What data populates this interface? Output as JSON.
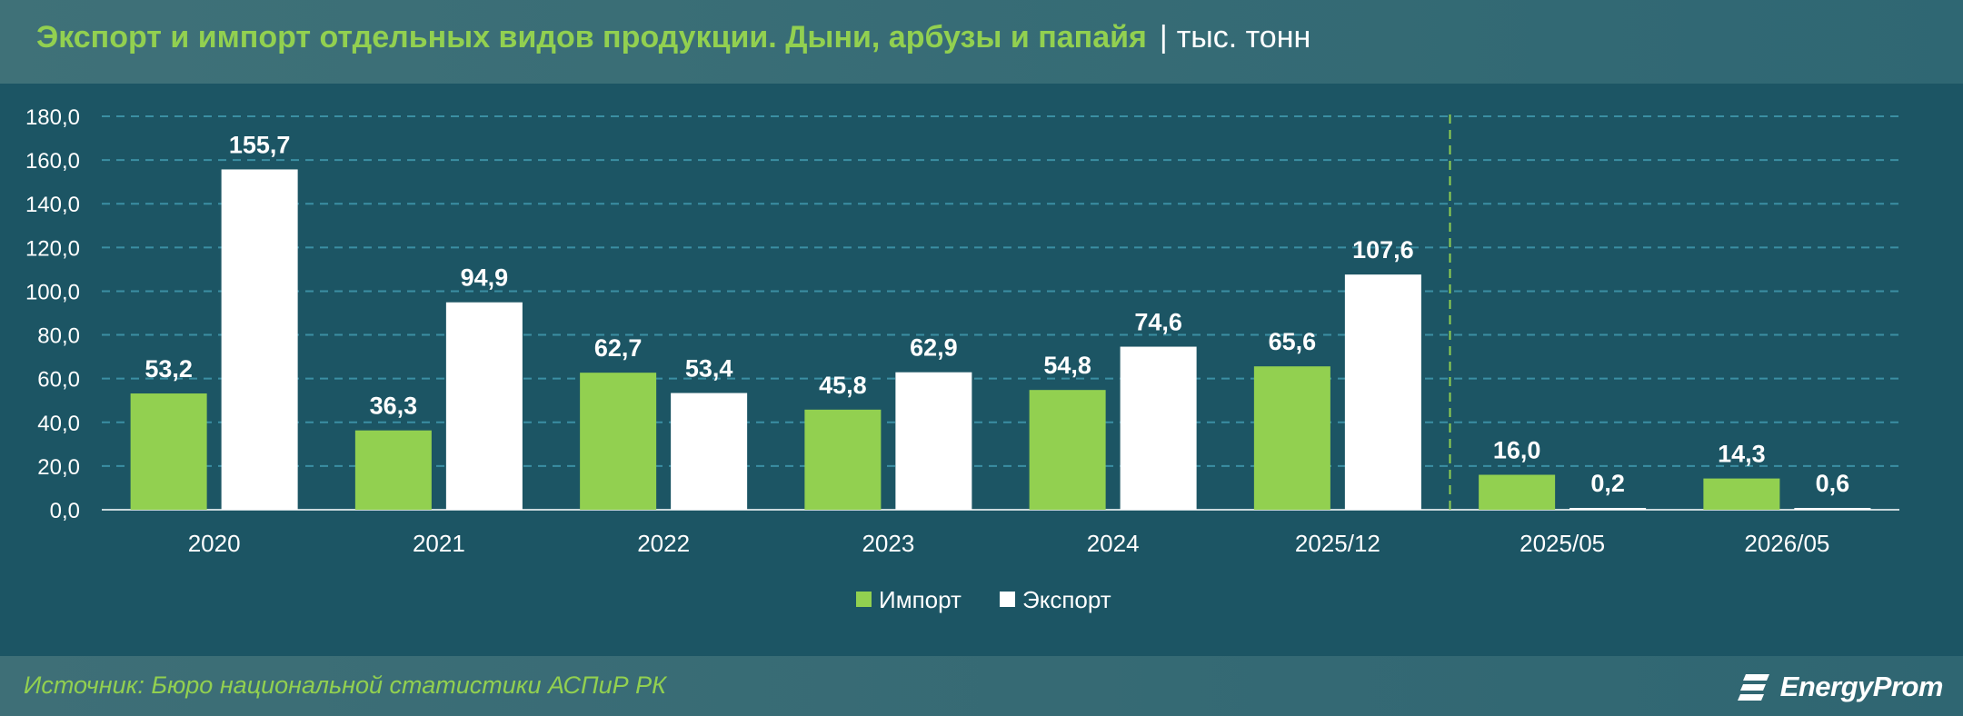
{
  "header": {
    "title": "Экспорт и импорт отдельных видов продукции. Дыни, арбузы и папайя",
    "separator": "|",
    "unit": "тыс. тонн"
  },
  "colors": {
    "background": "#1c5564",
    "import": "#92d050",
    "export": "#ffffff",
    "grid": "#3b8fa3",
    "divider": "#92d050"
  },
  "chart_data": {
    "type": "bar",
    "categories": [
      "2020",
      "2021",
      "2022",
      "2023",
      "2024",
      "2025/12",
      "2025/05",
      "2026/05"
    ],
    "series": [
      {
        "name": "Импорт",
        "values": [
          53.2,
          36.3,
          62.7,
          45.8,
          54.8,
          65.6,
          16.0,
          14.3
        ],
        "labels": [
          "53,2",
          "36,3",
          "62,7",
          "45,8",
          "54,8",
          "65,6",
          "16,0",
          "14,3"
        ]
      },
      {
        "name": "Экспорт",
        "values": [
          155.7,
          94.9,
          53.4,
          62.9,
          74.6,
          107.6,
          0.2,
          0.6
        ],
        "labels": [
          "155,7",
          "94,9",
          "53,4",
          "62,9",
          "74,6",
          "107,6",
          "0,2",
          "0,6"
        ]
      }
    ],
    "ylim": [
      0,
      180
    ],
    "yticks": [
      "0,0",
      "20,0",
      "40,0",
      "60,0",
      "80,0",
      "100,0",
      "120,0",
      "140,0",
      "160,0",
      "180,0"
    ],
    "grid": true,
    "divider_after_category": "2025/12",
    "legend_position": "bottom-center"
  },
  "footer": {
    "source": "Источник: Бюро национальной статистики АСПиР РК",
    "brand": "EnergyProm"
  }
}
